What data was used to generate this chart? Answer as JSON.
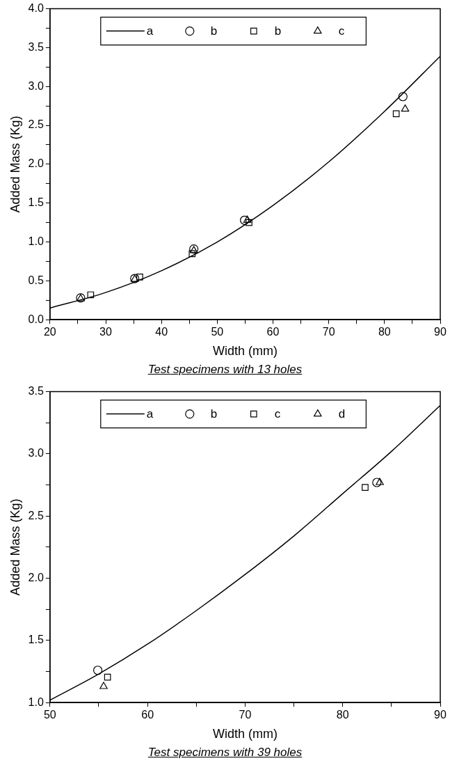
{
  "chart_data": [
    {
      "type": "scatter",
      "title": "Test specimens with 13 holes",
      "xlabel": "Width (mm)",
      "ylabel": "Added Mass (Kg)",
      "xlim": [
        20,
        90
      ],
      "ylim": [
        0,
        4
      ],
      "xticks": [
        20,
        {
          "value": 25,
          "label": null
        },
        30,
        {
          "value": 35,
          "label": null
        },
        40,
        {
          "value": 45,
          "label": null
        },
        50,
        {
          "value": 55,
          "label": null
        },
        60,
        {
          "value": 65,
          "label": null
        },
        70,
        {
          "value": 75,
          "label": null
        },
        80,
        {
          "value": 85,
          "label": null
        },
        90
      ],
      "yticks": [
        {
          "value": 0,
          "label": "0.0"
        },
        {
          "value": 0.25,
          "label": null
        },
        {
          "value": 0.5,
          "label": "0.5"
        },
        {
          "value": 0.75,
          "label": null
        },
        {
          "value": 1,
          "label": "1.0"
        },
        {
          "value": 1.25,
          "label": null
        },
        {
          "value": 1.5,
          "label": "1.5"
        },
        {
          "value": 1.75,
          "label": null
        },
        {
          "value": 2,
          "label": "2.0"
        },
        {
          "value": 2.25,
          "label": null
        },
        {
          "value": 2.5,
          "label": "2.5"
        },
        {
          "value": 2.75,
          "label": null
        },
        {
          "value": 3,
          "label": "3.0"
        },
        {
          "value": 3.25,
          "label": null
        },
        {
          "value": 3.5,
          "label": "3.5"
        },
        {
          "value": 3.75,
          "label": null
        },
        {
          "value": 4,
          "label": "4.0"
        }
      ],
      "grid": false,
      "legend": "top",
      "series": [
        {
          "name": "a",
          "type": "line",
          "marker": "none",
          "line_style": "solid",
          "color": "#000000",
          "x": [
            20,
            30,
            40,
            50,
            60,
            70,
            80,
            90
          ],
          "values": [
            0.15,
            0.35,
            0.63,
            1.0,
            1.47,
            2.03,
            2.68,
            3.39
          ]
        },
        {
          "name": "b",
          "type": "scatter",
          "marker": "circle",
          "color": "#000000",
          "x": [
            25.5,
            35.2,
            45.8,
            54.9,
            83.3
          ],
          "values": [
            0.28,
            0.53,
            0.91,
            1.28,
            2.87
          ]
        },
        {
          "name": "b",
          "type": "scatter",
          "marker": "square",
          "color": "#000000",
          "x": [
            27.3,
            36.1,
            45.5,
            55.7,
            82.1
          ],
          "values": [
            0.32,
            0.55,
            0.85,
            1.25,
            2.65
          ]
        },
        {
          "name": "c",
          "type": "scatter",
          "marker": "triangle",
          "color": "#000000",
          "x": [
            25.5,
            35.2,
            45.8,
            55.4,
            83.7
          ],
          "values": [
            0.27,
            0.52,
            0.89,
            1.28,
            2.71
          ]
        }
      ]
    },
    {
      "type": "scatter",
      "title": "Test specimens with 39 holes",
      "xlabel": "Width (mm)",
      "ylabel": "Added Mass (Kg)",
      "xlim": [
        50,
        90
      ],
      "ylim": [
        1,
        3.5
      ],
      "xticks": [
        50,
        {
          "value": 55,
          "label": null
        },
        60,
        {
          "value": 65,
          "label": null
        },
        70,
        {
          "value": 75,
          "label": null
        },
        80,
        {
          "value": 85,
          "label": null
        },
        90
      ],
      "yticks": [
        {
          "value": 1,
          "label": "1.0"
        },
        {
          "value": 1.25,
          "label": null
        },
        {
          "value": 1.5,
          "label": "1.5"
        },
        {
          "value": 1.75,
          "label": null
        },
        {
          "value": 2,
          "label": "2.0"
        },
        {
          "value": 2.25,
          "label": null
        },
        {
          "value": 2.5,
          "label": "2.5"
        },
        {
          "value": 2.75,
          "label": null
        },
        {
          "value": 3,
          "label": "3.0"
        },
        {
          "value": 3.25,
          "label": null
        },
        {
          "value": 3.5,
          "label": "3.5"
        }
      ],
      "grid": false,
      "legend": "top",
      "series": [
        {
          "name": "a",
          "type": "line",
          "marker": "none",
          "line_style": "solid",
          "color": "#000000",
          "x": [
            50,
            55,
            60,
            65,
            70,
            75,
            80,
            85,
            90
          ],
          "values": [
            1.02,
            1.23,
            1.47,
            1.74,
            2.03,
            2.34,
            2.68,
            3.02,
            3.39
          ]
        },
        {
          "name": "b",
          "type": "scatter",
          "marker": "circle",
          "color": "#000000",
          "x": [
            54.9,
            83.5
          ],
          "values": [
            1.26,
            2.77
          ]
        },
        {
          "name": "c",
          "type": "scatter",
          "marker": "square",
          "color": "#000000",
          "x": [
            55.9,
            82.3
          ],
          "values": [
            1.205,
            2.73
          ]
        },
        {
          "name": "d",
          "type": "scatter",
          "marker": "triangle",
          "color": "#000000",
          "x": [
            55.5,
            83.8
          ],
          "values": [
            1.13,
            2.77
          ]
        }
      ]
    }
  ]
}
